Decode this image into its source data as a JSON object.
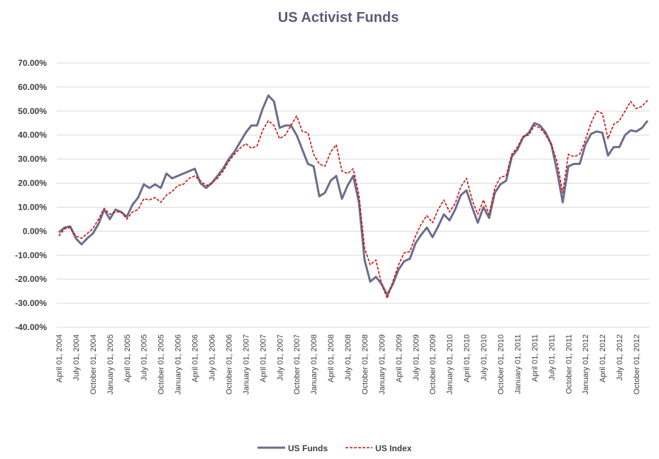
{
  "colors": {
    "title": "#5c5b7a",
    "funds": "#6e6c8c",
    "index": "#cc1010",
    "grid": "#d9d9d9",
    "axis_text": "#404040"
  },
  "chart_data": {
    "type": "line",
    "title": "US Activist Funds",
    "xlabel": "",
    "ylabel": "",
    "ylim": [
      -0.4,
      0.7
    ],
    "y_ticks": [
      0.7,
      0.6,
      0.5,
      0.4,
      0.3,
      0.2,
      0.1,
      0.0,
      -0.1,
      -0.2,
      -0.3,
      -0.4
    ],
    "y_tick_labels": [
      "70.00%",
      "60.00%",
      "50.00%",
      "40.00%",
      "30.00%",
      "20.00%",
      "10.00%",
      "0.00%",
      "-10.00%",
      "-20.00%",
      "-30.00%",
      "-40.00%"
    ],
    "x_tick_labels": [
      "April 01, 2004",
      "July 01, 2004",
      "October 01, 2004",
      "January 01, 2005",
      "April 01, 2005",
      "July 01, 2005",
      "October 01, 2005",
      "January 01, 2006",
      "April 01, 2006",
      "July 01, 2006",
      "October 01, 2006",
      "January 01, 2007",
      "April 01, 2007",
      "July 01, 2007",
      "October 01, 2007",
      "January 01, 2008",
      "April 01, 2008",
      "July 01, 2008",
      "October 01, 2008",
      "January 01, 2009",
      "April 01, 2009",
      "July 01, 2009",
      "October 01, 2009",
      "January 01, 2010",
      "April 01, 2010",
      "July 01, 2010",
      "October 01, 2010",
      "January 01, 2011",
      "April 01, 2011",
      "July 01, 2011",
      "October 01, 2011",
      "January 01, 2012",
      "April 01, 2012",
      "July 01, 2012",
      "October 01, 2012"
    ],
    "n_points": 105,
    "series": [
      {
        "name": "US Funds",
        "style": "solid",
        "points": [
          [
            0,
            -0.005
          ],
          [
            1,
            0.015
          ],
          [
            2,
            0.02
          ],
          [
            3,
            -0.03
          ],
          [
            4,
            -0.055
          ],
          [
            5,
            -0.03
          ],
          [
            6,
            -0.01
          ],
          [
            7,
            0.03
          ],
          [
            8,
            0.09
          ],
          [
            9,
            0.05
          ],
          [
            10,
            0.09
          ],
          [
            11,
            0.08
          ],
          [
            12,
            0.06
          ],
          [
            13,
            0.11
          ],
          [
            14,
            0.14
          ],
          [
            15,
            0.195
          ],
          [
            16,
            0.18
          ],
          [
            17,
            0.195
          ],
          [
            18,
            0.18
          ],
          [
            19,
            0.24
          ],
          [
            20,
            0.22
          ],
          [
            21,
            0.23
          ],
          [
            22,
            0.24
          ],
          [
            23,
            0.25
          ],
          [
            24,
            0.26
          ],
          [
            25,
            0.2
          ],
          [
            26,
            0.18
          ],
          [
            27,
            0.2
          ],
          [
            28,
            0.23
          ],
          [
            29,
            0.26
          ],
          [
            30,
            0.3
          ],
          [
            31,
            0.33
          ],
          [
            32,
            0.37
          ],
          [
            33,
            0.41
          ],
          [
            34,
            0.44
          ],
          [
            35,
            0.44
          ],
          [
            36,
            0.51
          ],
          [
            37,
            0.565
          ],
          [
            38,
            0.54
          ],
          [
            39,
            0.43
          ],
          [
            40,
            0.44
          ],
          [
            41,
            0.44
          ],
          [
            42,
            0.4
          ],
          [
            43,
            0.34
          ],
          [
            44,
            0.28
          ],
          [
            45,
            0.27
          ],
          [
            46,
            0.145
          ],
          [
            47,
            0.16
          ],
          [
            48,
            0.21
          ],
          [
            49,
            0.23
          ],
          [
            50,
            0.135
          ],
          [
            51,
            0.19
          ],
          [
            52,
            0.23
          ],
          [
            53,
            0.12
          ],
          [
            54,
            -0.12
          ],
          [
            55,
            -0.21
          ],
          [
            56,
            -0.19
          ],
          [
            57,
            -0.22
          ],
          [
            58,
            -0.265
          ],
          [
            59,
            -0.22
          ],
          [
            60,
            -0.16
          ],
          [
            61,
            -0.125
          ],
          [
            62,
            -0.115
          ],
          [
            63,
            -0.05
          ],
          [
            64,
            -0.015
          ],
          [
            65,
            0.015
          ],
          [
            66,
            -0.025
          ],
          [
            67,
            0.02
          ],
          [
            68,
            0.07
          ],
          [
            69,
            0.045
          ],
          [
            70,
            0.09
          ],
          [
            71,
            0.15
          ],
          [
            72,
            0.17
          ],
          [
            73,
            0.1
          ],
          [
            74,
            0.035
          ],
          [
            75,
            0.1
          ],
          [
            76,
            0.055
          ],
          [
            77,
            0.16
          ],
          [
            78,
            0.195
          ],
          [
            79,
            0.21
          ],
          [
            80,
            0.31
          ],
          [
            81,
            0.34
          ],
          [
            82,
            0.39
          ],
          [
            83,
            0.41
          ],
          [
            84,
            0.45
          ],
          [
            85,
            0.44
          ],
          [
            86,
            0.41
          ],
          [
            87,
            0.36
          ],
          [
            88,
            0.25
          ],
          [
            89,
            0.12
          ],
          [
            90,
            0.27
          ],
          [
            91,
            0.28
          ],
          [
            92,
            0.28
          ],
          [
            93,
            0.36
          ],
          [
            94,
            0.405
          ],
          [
            95,
            0.415
          ],
          [
            96,
            0.41
          ],
          [
            97,
            0.315
          ],
          [
            98,
            0.35
          ],
          [
            99,
            0.35
          ],
          [
            100,
            0.4
          ],
          [
            101,
            0.42
          ],
          [
            102,
            0.415
          ],
          [
            103,
            0.43
          ],
          [
            104,
            0.46
          ]
        ]
      },
      {
        "name": "US Index",
        "style": "dashed",
        "points": [
          [
            0,
            -0.02
          ],
          [
            1,
            0.01
          ],
          [
            2,
            0.015
          ],
          [
            3,
            -0.02
          ],
          [
            4,
            -0.03
          ],
          [
            5,
            -0.01
          ],
          [
            6,
            0.01
          ],
          [
            7,
            0.05
          ],
          [
            8,
            0.095
          ],
          [
            9,
            0.07
          ],
          [
            10,
            0.08
          ],
          [
            11,
            0.08
          ],
          [
            12,
            0.05
          ],
          [
            13,
            0.08
          ],
          [
            14,
            0.09
          ],
          [
            15,
            0.135
          ],
          [
            16,
            0.13
          ],
          [
            17,
            0.14
          ],
          [
            18,
            0.12
          ],
          [
            19,
            0.15
          ],
          [
            20,
            0.165
          ],
          [
            21,
            0.19
          ],
          [
            22,
            0.195
          ],
          [
            23,
            0.22
          ],
          [
            24,
            0.23
          ],
          [
            25,
            0.21
          ],
          [
            26,
            0.19
          ],
          [
            27,
            0.2
          ],
          [
            28,
            0.22
          ],
          [
            29,
            0.25
          ],
          [
            30,
            0.29
          ],
          [
            31,
            0.32
          ],
          [
            32,
            0.345
          ],
          [
            33,
            0.365
          ],
          [
            34,
            0.345
          ],
          [
            35,
            0.355
          ],
          [
            36,
            0.42
          ],
          [
            37,
            0.46
          ],
          [
            38,
            0.44
          ],
          [
            39,
            0.385
          ],
          [
            40,
            0.4
          ],
          [
            41,
            0.44
          ],
          [
            42,
            0.48
          ],
          [
            43,
            0.415
          ],
          [
            44,
            0.41
          ],
          [
            45,
            0.32
          ],
          [
            46,
            0.28
          ],
          [
            47,
            0.27
          ],
          [
            48,
            0.33
          ],
          [
            49,
            0.36
          ],
          [
            50,
            0.25
          ],
          [
            51,
            0.24
          ],
          [
            52,
            0.26
          ],
          [
            53,
            0.15
          ],
          [
            54,
            -0.07
          ],
          [
            55,
            -0.14
          ],
          [
            56,
            -0.12
          ],
          [
            57,
            -0.22
          ],
          [
            58,
            -0.28
          ],
          [
            59,
            -0.21
          ],
          [
            60,
            -0.14
          ],
          [
            61,
            -0.09
          ],
          [
            62,
            -0.085
          ],
          [
            63,
            -0.02
          ],
          [
            64,
            0.03
          ],
          [
            65,
            0.065
          ],
          [
            66,
            0.035
          ],
          [
            67,
            0.09
          ],
          [
            68,
            0.13
          ],
          [
            69,
            0.08
          ],
          [
            70,
            0.115
          ],
          [
            71,
            0.185
          ],
          [
            72,
            0.22
          ],
          [
            73,
            0.13
          ],
          [
            74,
            0.07
          ],
          [
            75,
            0.13
          ],
          [
            76,
            0.07
          ],
          [
            77,
            0.18
          ],
          [
            78,
            0.225
          ],
          [
            79,
            0.23
          ],
          [
            80,
            0.32
          ],
          [
            81,
            0.35
          ],
          [
            82,
            0.395
          ],
          [
            83,
            0.4
          ],
          [
            84,
            0.44
          ],
          [
            85,
            0.43
          ],
          [
            86,
            0.4
          ],
          [
            87,
            0.36
          ],
          [
            88,
            0.29
          ],
          [
            89,
            0.16
          ],
          [
            90,
            0.32
          ],
          [
            91,
            0.31
          ],
          [
            92,
            0.32
          ],
          [
            93,
            0.38
          ],
          [
            94,
            0.45
          ],
          [
            95,
            0.5
          ],
          [
            96,
            0.49
          ],
          [
            97,
            0.385
          ],
          [
            98,
            0.445
          ],
          [
            99,
            0.46
          ],
          [
            100,
            0.5
          ],
          [
            101,
            0.54
          ],
          [
            102,
            0.51
          ],
          [
            103,
            0.52
          ],
          [
            104,
            0.545
          ]
        ]
      }
    ],
    "legend": {
      "position": "bottom-center",
      "items": [
        "US Funds",
        "US Index"
      ]
    },
    "grid": true
  }
}
